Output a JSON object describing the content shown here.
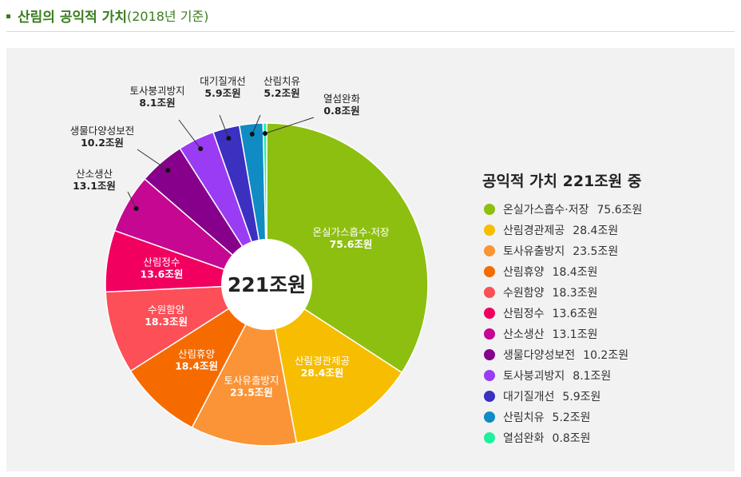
{
  "header": {
    "title": "산림의 공익적 가치",
    "subtitle": "(2018년 기준)"
  },
  "chart_data": {
    "type": "pie",
    "center_label": "221조원",
    "legend_title": "공익적 가치 221조원 중",
    "categories": [
      "온실가스흡수·저장",
      "산림경관제공",
      "토사유출방지",
      "산림휴양",
      "수원함양",
      "산림정수",
      "산소생산",
      "생물다양성보전",
      "토사붕괴방지",
      "대기질개선",
      "산림치유",
      "열섬완화"
    ],
    "values": [
      75.6,
      28.4,
      23.5,
      18.4,
      18.3,
      13.6,
      13.1,
      10.2,
      8.1,
      5.9,
      5.2,
      0.8
    ],
    "value_labels": [
      "75.6조원",
      "28.4조원",
      "23.5조원",
      "18.4조원",
      "18.3조원",
      "13.6조원",
      "13.1조원",
      "10.2조원",
      "8.1조원",
      "5.9조원",
      "5.2조원",
      "0.8조원"
    ],
    "slice_labels": [
      "온실가스흡수·저장",
      "산림경관제공",
      "토사유출방지",
      "산림휴양",
      "수원함양",
      "산림정수",
      "산소생산",
      "생물다양성보전",
      "토사붕괴방지",
      "대기질개선",
      "산림치유",
      "열섬완화"
    ],
    "colors": [
      "#8dbf10",
      "#f7bd00",
      "#fa9437",
      "#f56b00",
      "#fc4f57",
      "#f2005f",
      "#c50792",
      "#86008c",
      "#9b3cf5",
      "#3b30c0",
      "#108bc4",
      "#1ff0a0"
    ],
    "unit": "조원"
  }
}
